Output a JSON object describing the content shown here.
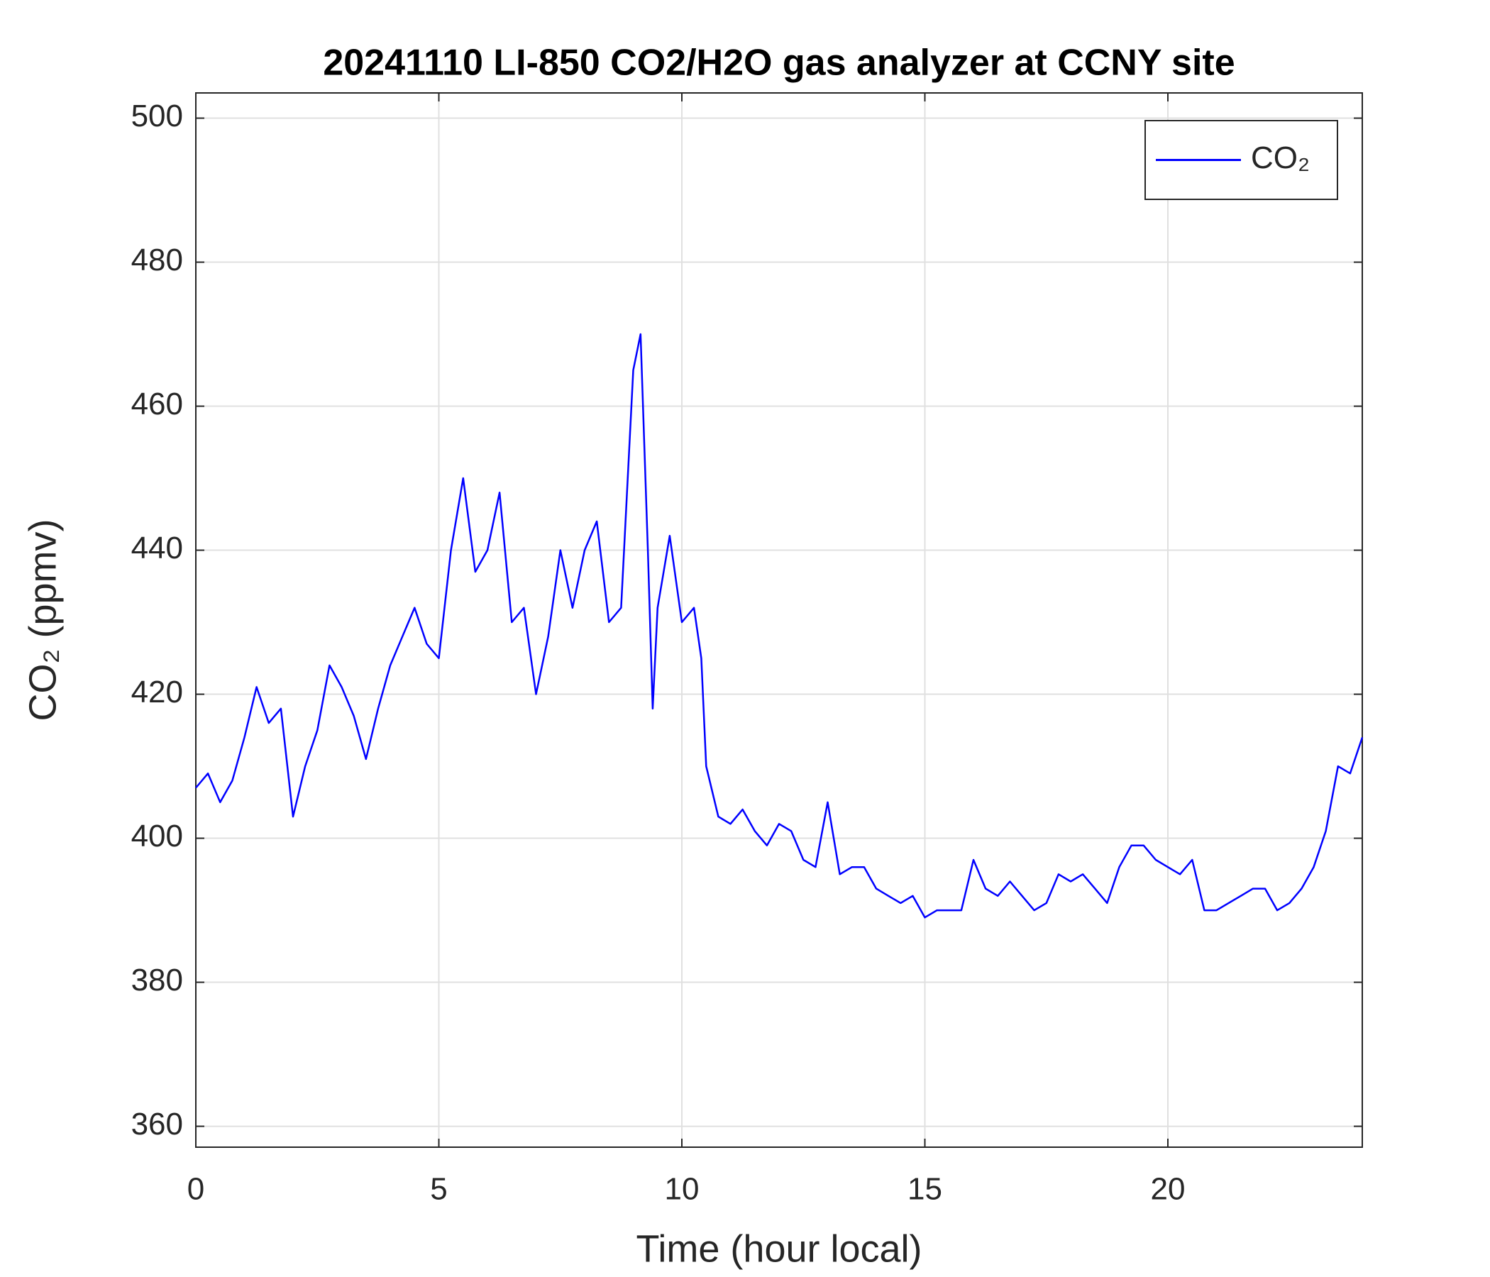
{
  "chart_data": {
    "type": "line",
    "title": "20241110 LI-850 CO2/H2O gas analyzer at CCNY site",
    "xlabel": "Time (hour local)",
    "ylabel": "CO₂ (ppmv)",
    "xlim": [
      0,
      24
    ],
    "ylim": [
      357.1,
      503.5
    ],
    "xticks": [
      0,
      5,
      10,
      15,
      20
    ],
    "yticks": [
      360,
      380,
      400,
      420,
      440,
      460,
      480,
      500
    ],
    "grid": true,
    "legend": "northeast",
    "x": [
      0,
      0.25,
      0.5,
      0.75,
      1,
      1.25,
      1.5,
      1.75,
      2,
      2.25,
      2.5,
      2.75,
      3,
      3.25,
      3.5,
      3.75,
      4,
      4.25,
      4.5,
      4.75,
      5,
      5.25,
      5.5,
      5.75,
      6,
      6.25,
      6.5,
      6.75,
      7,
      7.25,
      7.5,
      7.75,
      8,
      8.25,
      8.5,
      8.75,
      9,
      9.15,
      9.3,
      9.4,
      9.5,
      9.75,
      10,
      10.25,
      10.4,
      10.5,
      10.75,
      11,
      11.25,
      11.5,
      11.75,
      12,
      12.25,
      12.5,
      12.75,
      13,
      13.25,
      13.5,
      13.75,
      14,
      14.25,
      14.5,
      14.75,
      15,
      15.25,
      15.5,
      15.75,
      16,
      16.25,
      16.5,
      16.75,
      17,
      17.25,
      17.5,
      17.75,
      18,
      18.25,
      18.5,
      18.75,
      19,
      19.25,
      19.5,
      19.75,
      20,
      20.25,
      20.5,
      20.75,
      21,
      21.25,
      21.5,
      21.75,
      22,
      22.25,
      22.5,
      22.75,
      23,
      23.25,
      23.5,
      23.75,
      24
    ],
    "series": [
      {
        "name": "CO₂",
        "color": "#0000ff",
        "values": [
          407,
          409,
          405,
          408,
          414,
          421,
          416,
          418,
          403,
          410,
          415,
          424,
          421,
          417,
          411,
          418,
          424,
          428,
          432,
          427,
          425,
          440,
          450,
          437,
          440,
          448,
          430,
          432,
          420,
          428,
          440,
          432,
          440,
          444,
          430,
          432,
          465,
          470,
          440,
          418,
          432,
          442,
          430,
          432,
          425,
          410,
          403,
          402,
          404,
          401,
          399,
          402,
          401,
          397,
          396,
          405,
          395,
          396,
          396,
          393,
          392,
          391,
          392,
          389,
          390,
          390,
          390,
          397,
          393,
          392,
          394,
          392,
          390,
          391,
          395,
          394,
          395,
          393,
          391,
          396,
          399,
          399,
          397,
          396,
          395,
          397,
          390,
          390,
          391,
          392,
          393,
          393,
          390,
          391,
          393,
          396,
          401,
          410,
          409,
          414
        ]
      }
    ]
  }
}
